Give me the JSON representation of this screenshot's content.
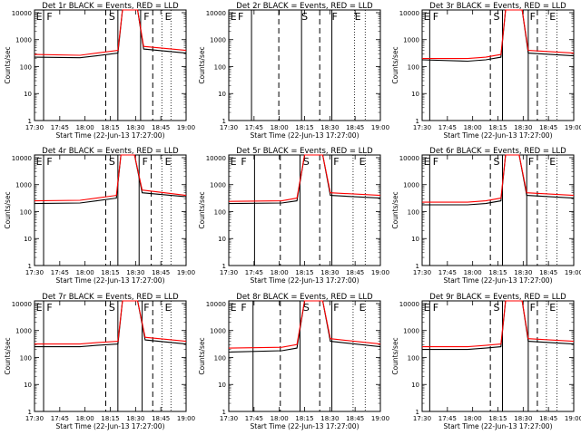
{
  "figure": {
    "xlabel": "Start Time (22-Jun-13 17:27:00)",
    "ylabel": "Counts/sec",
    "x_ticks": [
      "17:30",
      "17:45",
      "18:00",
      "18:15",
      "18:30",
      "18:45",
      "19:00"
    ],
    "y_ticks": [
      "1",
      "10",
      "100",
      "1000",
      "10000"
    ],
    "colors": {
      "events": "#000000",
      "lld": "#ff0000"
    }
  },
  "chart_data": [
    {
      "type": "line",
      "title": "Det 1r BLACK = Events, RED = LLD",
      "xlim": [
        0,
        100
      ],
      "ylim_log10": [
        0,
        4.1
      ],
      "solid_lines": [
        6,
        55,
        70
      ],
      "dashed_lines": [
        47,
        78
      ],
      "dotted_lines": [
        84,
        90
      ],
      "labels": [
        {
          "text": "E",
          "x": 1
        },
        {
          "text": "F",
          "x": 8
        },
        {
          "text": "S",
          "x": 49
        },
        {
          "text": "F",
          "x": 72
        },
        {
          "text": "E",
          "x": 86
        }
      ],
      "events": [
        {
          "x": 0,
          "y": 2.35
        },
        {
          "x": 30,
          "y": 2.33
        },
        {
          "x": 41,
          "y": 2.4
        },
        {
          "x": 55,
          "y": 2.5
        },
        {
          "x": 58,
          "y": 4.1
        },
        {
          "x": 68,
          "y": 4.1
        },
        {
          "x": 72,
          "y": 2.65
        },
        {
          "x": 100,
          "y": 2.5
        }
      ],
      "lld": [
        {
          "x": 0,
          "y": 2.45
        },
        {
          "x": 30,
          "y": 2.42
        },
        {
          "x": 41,
          "y": 2.5
        },
        {
          "x": 55,
          "y": 2.6
        },
        {
          "x": 58,
          "y": 4.1
        },
        {
          "x": 68,
          "y": 4.1
        },
        {
          "x": 72,
          "y": 2.75
        },
        {
          "x": 100,
          "y": 2.6
        }
      ]
    },
    {
      "type": "line",
      "title": "Det 2r BLACK = Events, RED = LLD",
      "xlim": [
        0,
        100
      ],
      "ylim_log10": [
        0,
        4.1
      ],
      "solid_lines": [
        15,
        48,
        68
      ],
      "dashed_lines": [
        33,
        60
      ],
      "dotted_lines": [
        83,
        90
      ],
      "labels": [
        {
          "text": "E",
          "x": 1
        },
        {
          "text": "F",
          "x": 6
        },
        {
          "text": "S",
          "x": 48
        },
        {
          "text": "F",
          "x": 68
        },
        {
          "text": "E",
          "x": 83
        }
      ],
      "events": [],
      "lld": []
    },
    {
      "type": "line",
      "title": "Det 3r BLACK = Events, RED = LLD",
      "xlim": [
        0,
        100
      ],
      "ylim_log10": [
        0,
        4.1
      ],
      "solid_lines": [
        5,
        53,
        70
      ],
      "dashed_lines": [
        45,
        76
      ],
      "dotted_lines": [
        82,
        89
      ],
      "labels": [
        {
          "text": "E",
          "x": 1
        },
        {
          "text": "F",
          "x": 7
        },
        {
          "text": "S",
          "x": 47
        },
        {
          "text": "F",
          "x": 71
        },
        {
          "text": "E",
          "x": 84
        }
      ],
      "events": [
        {
          "x": 0,
          "y": 2.25
        },
        {
          "x": 30,
          "y": 2.2
        },
        {
          "x": 42,
          "y": 2.25
        },
        {
          "x": 52,
          "y": 2.35
        },
        {
          "x": 55,
          "y": 4.1
        },
        {
          "x": 66,
          "y": 4.1
        },
        {
          "x": 70,
          "y": 2.5
        },
        {
          "x": 100,
          "y": 2.4
        }
      ],
      "lld": [
        {
          "x": 0,
          "y": 2.3
        },
        {
          "x": 30,
          "y": 2.3
        },
        {
          "x": 42,
          "y": 2.35
        },
        {
          "x": 52,
          "y": 2.45
        },
        {
          "x": 55,
          "y": 4.1
        },
        {
          "x": 66,
          "y": 4.1
        },
        {
          "x": 70,
          "y": 2.6
        },
        {
          "x": 100,
          "y": 2.5
        }
      ]
    },
    {
      "type": "line",
      "title": "Det 4r BLACK = Events, RED = LLD",
      "xlim": [
        0,
        100
      ],
      "ylim_log10": [
        0,
        4.1
      ],
      "solid_lines": [
        6,
        55,
        69
      ],
      "dashed_lines": [
        47,
        77
      ],
      "dotted_lines": [
        84,
        90
      ],
      "labels": [
        {
          "text": "E",
          "x": 1
        },
        {
          "text": "F",
          "x": 8
        },
        {
          "text": "S",
          "x": 49
        },
        {
          "text": "F",
          "x": 71
        },
        {
          "text": "E",
          "x": 86
        }
      ],
      "events": [
        {
          "x": 0,
          "y": 2.3
        },
        {
          "x": 30,
          "y": 2.32
        },
        {
          "x": 41,
          "y": 2.4
        },
        {
          "x": 54,
          "y": 2.5
        },
        {
          "x": 57,
          "y": 4.1
        },
        {
          "x": 66,
          "y": 4.1
        },
        {
          "x": 71,
          "y": 2.7
        },
        {
          "x": 100,
          "y": 2.55
        }
      ],
      "lld": [
        {
          "x": 0,
          "y": 2.4
        },
        {
          "x": 30,
          "y": 2.42
        },
        {
          "x": 41,
          "y": 2.5
        },
        {
          "x": 54,
          "y": 2.6
        },
        {
          "x": 57,
          "y": 4.1
        },
        {
          "x": 66,
          "y": 4.1
        },
        {
          "x": 71,
          "y": 2.8
        },
        {
          "x": 100,
          "y": 2.6
        }
      ]
    },
    {
      "type": "line",
      "title": "Det 5r BLACK = Events, RED = LLD",
      "xlim": [
        0,
        100
      ],
      "ylim_log10": [
        0,
        4.1
      ],
      "solid_lines": [
        17,
        47,
        68
      ],
      "dashed_lines": [
        34,
        60
      ],
      "dotted_lines": [
        82,
        90
      ],
      "labels": [
        {
          "text": "E",
          "x": 1
        },
        {
          "text": "F",
          "x": 8
        },
        {
          "text": "S",
          "x": 49
        },
        {
          "text": "F",
          "x": 69
        },
        {
          "text": "E",
          "x": 86
        }
      ],
      "events": [
        {
          "x": 0,
          "y": 2.3
        },
        {
          "x": 35,
          "y": 2.32
        },
        {
          "x": 45,
          "y": 2.4
        },
        {
          "x": 50,
          "y": 4.1
        },
        {
          "x": 62,
          "y": 4.1
        },
        {
          "x": 67,
          "y": 2.6
        },
        {
          "x": 100,
          "y": 2.5
        }
      ],
      "lld": [
        {
          "x": 0,
          "y": 2.38
        },
        {
          "x": 35,
          "y": 2.4
        },
        {
          "x": 45,
          "y": 2.5
        },
        {
          "x": 50,
          "y": 4.1
        },
        {
          "x": 62,
          "y": 4.1
        },
        {
          "x": 67,
          "y": 2.7
        },
        {
          "x": 100,
          "y": 2.6
        }
      ]
    },
    {
      "type": "line",
      "title": "Det 6r BLACK = Events, RED = LLD",
      "xlim": [
        0,
        100
      ],
      "ylim_log10": [
        0,
        4.1
      ],
      "solid_lines": [
        5,
        53,
        69
      ],
      "dashed_lines": [
        45,
        76
      ],
      "dotted_lines": [
        82,
        89
      ],
      "labels": [
        {
          "text": "E",
          "x": 1
        },
        {
          "text": "F",
          "x": 7
        },
        {
          "text": "S",
          "x": 47
        },
        {
          "text": "F",
          "x": 70
        },
        {
          "text": "E",
          "x": 84
        }
      ],
      "events": [
        {
          "x": 0,
          "y": 2.25
        },
        {
          "x": 30,
          "y": 2.25
        },
        {
          "x": 42,
          "y": 2.3
        },
        {
          "x": 52,
          "y": 2.4
        },
        {
          "x": 55,
          "y": 4.1
        },
        {
          "x": 64,
          "y": 4.1
        },
        {
          "x": 69,
          "y": 2.6
        },
        {
          "x": 100,
          "y": 2.5
        }
      ],
      "lld": [
        {
          "x": 0,
          "y": 2.35
        },
        {
          "x": 30,
          "y": 2.35
        },
        {
          "x": 42,
          "y": 2.4
        },
        {
          "x": 52,
          "y": 2.5
        },
        {
          "x": 55,
          "y": 4.1
        },
        {
          "x": 64,
          "y": 4.1
        },
        {
          "x": 69,
          "y": 2.7
        },
        {
          "x": 100,
          "y": 2.6
        }
      ]
    },
    {
      "type": "line",
      "title": "Det 7r BLACK = Events, RED = LLD",
      "xlim": [
        0,
        100
      ],
      "ylim_log10": [
        0,
        4.1
      ],
      "solid_lines": [
        6,
        55,
        71
      ],
      "dashed_lines": [
        47,
        78
      ],
      "dotted_lines": [
        84,
        90
      ],
      "labels": [
        {
          "text": "E",
          "x": 1
        },
        {
          "text": "F",
          "x": 8
        },
        {
          "text": "S",
          "x": 49
        },
        {
          "text": "F",
          "x": 72
        },
        {
          "text": "E",
          "x": 86
        }
      ],
      "events": [
        {
          "x": 0,
          "y": 2.4
        },
        {
          "x": 30,
          "y": 2.4
        },
        {
          "x": 41,
          "y": 2.45
        },
        {
          "x": 55,
          "y": 2.5
        },
        {
          "x": 58,
          "y": 4.1
        },
        {
          "x": 68,
          "y": 4.1
        },
        {
          "x": 73,
          "y": 2.65
        },
        {
          "x": 100,
          "y": 2.5
        }
      ],
      "lld": [
        {
          "x": 0,
          "y": 2.5
        },
        {
          "x": 30,
          "y": 2.5
        },
        {
          "x": 41,
          "y": 2.55
        },
        {
          "x": 55,
          "y": 2.6
        },
        {
          "x": 58,
          "y": 4.1
        },
        {
          "x": 68,
          "y": 4.1
        },
        {
          "x": 73,
          "y": 2.75
        },
        {
          "x": 100,
          "y": 2.6
        }
      ]
    },
    {
      "type": "line",
      "title": "Det 8r BLACK = Events, RED = LLD",
      "xlim": [
        0,
        100
      ],
      "ylim_log10": [
        0,
        4.1
      ],
      "solid_lines": [
        16,
        47,
        68
      ],
      "dashed_lines": [
        34,
        60
      ],
      "dotted_lines": [
        82,
        90
      ],
      "labels": [
        {
          "text": "E",
          "x": 1
        },
        {
          "text": "F",
          "x": 8
        },
        {
          "text": "S",
          "x": 49
        },
        {
          "text": "F",
          "x": 69
        },
        {
          "text": "E",
          "x": 86
        }
      ],
      "events": [
        {
          "x": 0,
          "y": 2.2
        },
        {
          "x": 35,
          "y": 2.25
        },
        {
          "x": 45,
          "y": 2.35
        },
        {
          "x": 50,
          "y": 4.1
        },
        {
          "x": 62,
          "y": 4.1
        },
        {
          "x": 67,
          "y": 2.6
        },
        {
          "x": 100,
          "y": 2.4
        }
      ],
      "lld": [
        {
          "x": 0,
          "y": 2.35
        },
        {
          "x": 35,
          "y": 2.38
        },
        {
          "x": 45,
          "y": 2.48
        },
        {
          "x": 50,
          "y": 4.1
        },
        {
          "x": 62,
          "y": 4.1
        },
        {
          "x": 67,
          "y": 2.7
        },
        {
          "x": 100,
          "y": 2.5
        }
      ]
    },
    {
      "type": "line",
      "title": "Det 9r BLACK = Events, RED = LLD",
      "xlim": [
        0,
        100
      ],
      "ylim_log10": [
        0,
        4.1
      ],
      "solid_lines": [
        5,
        53,
        70
      ],
      "dashed_lines": [
        45,
        76
      ],
      "dotted_lines": [
        82,
        89
      ],
      "labels": [
        {
          "text": "E",
          "x": 1
        },
        {
          "text": "F",
          "x": 7
        },
        {
          "text": "S",
          "x": 47
        },
        {
          "text": "F",
          "x": 71
        },
        {
          "text": "E",
          "x": 84
        }
      ],
      "events": [
        {
          "x": 0,
          "y": 2.3
        },
        {
          "x": 30,
          "y": 2.3
        },
        {
          "x": 42,
          "y": 2.35
        },
        {
          "x": 52,
          "y": 2.4
        },
        {
          "x": 55,
          "y": 4.1
        },
        {
          "x": 66,
          "y": 4.1
        },
        {
          "x": 70,
          "y": 2.6
        },
        {
          "x": 100,
          "y": 2.5
        }
      ],
      "lld": [
        {
          "x": 0,
          "y": 2.4
        },
        {
          "x": 30,
          "y": 2.4
        },
        {
          "x": 42,
          "y": 2.45
        },
        {
          "x": 52,
          "y": 2.5
        },
        {
          "x": 55,
          "y": 4.1
        },
        {
          "x": 66,
          "y": 4.1
        },
        {
          "x": 70,
          "y": 2.7
        },
        {
          "x": 100,
          "y": 2.6
        }
      ]
    }
  ]
}
